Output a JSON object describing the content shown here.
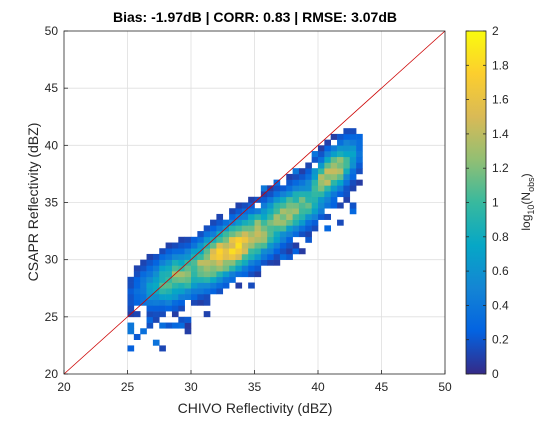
{
  "chart_data": {
    "type": "heatmap",
    "title": "Bias: -1.97dB | CORR: 0.83 | RMSE: 3.07dB",
    "xlabel": "CHIVO Reflectivity (dBZ)",
    "ylabel": "CSAPR Reflectivity (dBZ)",
    "xlim": [
      20,
      50
    ],
    "ylim": [
      20,
      50
    ],
    "xticks": [
      "20",
      "25",
      "30",
      "35",
      "40",
      "45",
      "50"
    ],
    "yticks": [
      "20",
      "25",
      "30",
      "35",
      "40",
      "45",
      "50"
    ],
    "grid": true,
    "reference_line": {
      "from": [
        20,
        20
      ],
      "to": [
        50,
        50
      ],
      "color": "#cc0000"
    },
    "colorbar": {
      "label_main": "log",
      "label_sub1": "10",
      "label_paren": "(N",
      "label_sub2": "obs",
      "label_close": ")",
      "range": [
        0,
        2
      ],
      "ticks": [
        "0",
        "0.2",
        "0.4",
        "0.6",
        "0.8",
        "1",
        "1.2",
        "1.4",
        "1.6",
        "1.8",
        "2"
      ],
      "colormap": "parula",
      "colormap_stops": [
        "#352a87",
        "#0363e1",
        "#1485d4",
        "#06a7c6",
        "#38b99e",
        "#92bf73",
        "#d9ba56",
        "#fcce2e",
        "#f9fb0e"
      ]
    },
    "density_model": {
      "description": "2D histogram of paired reflectivity, bin width 0.5 dBZ",
      "bin_width": 0.5,
      "x_range": [
        25,
        43.5
      ],
      "components": [
        {
          "x": 33.3,
          "y": 31.0,
          "sx": 3.2,
          "sy": 2.4,
          "rho": 0.8,
          "peak": 1.75
        },
        {
          "x": 41.0,
          "y": 37.5,
          "sx": 1.4,
          "sy": 1.8,
          "rho": 0.7,
          "peak": 1.45
        },
        {
          "x": 29.0,
          "y": 28.5,
          "sx": 2.0,
          "sy": 1.6,
          "rho": 0.5,
          "peak": 1.2
        },
        {
          "x": 37.5,
          "y": 34.0,
          "sx": 2.5,
          "sy": 2.0,
          "rho": 0.75,
          "peak": 1.3
        }
      ]
    }
  }
}
